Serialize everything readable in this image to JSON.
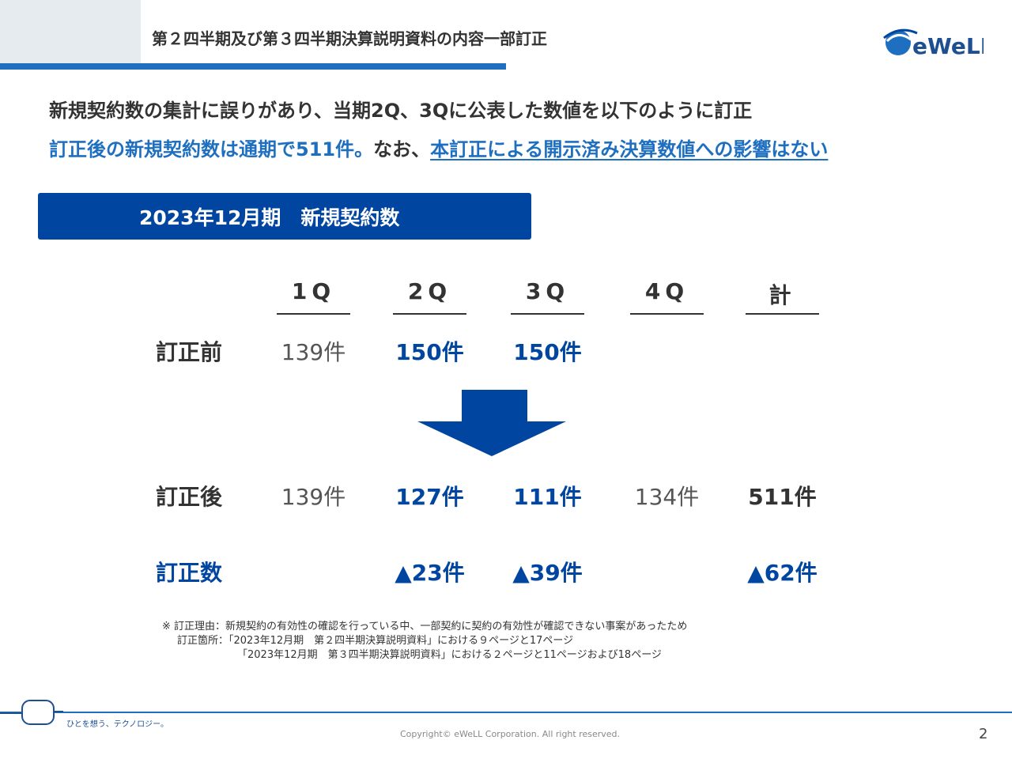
{
  "header": {
    "title": "第２四半期及び第３四半期決算説明資料の内容一部訂正",
    "logo_text": "eWeLL"
  },
  "lead": {
    "line1": "新規契約数の集計に誤りがあり、当期2Q、3Qに公表した数値を以下のように訂正",
    "line2_blue": "訂正後の新規契約数は通期で511件。",
    "line2_dark": "なお、",
    "line2_link": "本訂正による開示済み決算数値への影響はない"
  },
  "banner": {
    "title": "2023年12月期　新規契約数"
  },
  "table": {
    "columns": [
      "1Q",
      "2Q",
      "3Q",
      "4Q",
      "計"
    ],
    "rows": {
      "before": {
        "label": "訂正前",
        "values": [
          "139件",
          "150件",
          "150件",
          "",
          ""
        ]
      },
      "after": {
        "label": "訂正後",
        "values": [
          "139件",
          "127件",
          "111件",
          "134件",
          "511件"
        ]
      },
      "diff": {
        "label": "訂正数",
        "values": [
          "",
          "▲23件",
          "▲39件",
          "",
          "▲62件"
        ]
      }
    }
  },
  "notes": {
    "line1": "※ 訂正理由：新規契約の有効性の確認を行っている中、一部契約に契約の有効性が確認できない事案があったため",
    "line2": "訂正箇所：「2023年12月期　第２四半期決算説明資料」における９ページと17ページ",
    "line3": "「2023年12月期　第３四半期決算説明資料」における２ページと11ページおよび18ページ"
  },
  "footer": {
    "tagline": "ひとを想う、テクノロジー。",
    "copyright": "Copyright© eWeLL Corporation. All right reserved.",
    "page_number": "2"
  },
  "colors": {
    "primary_blue": "#0046a0",
    "accent_blue": "#1e6fc0",
    "text_dark": "#333333"
  }
}
